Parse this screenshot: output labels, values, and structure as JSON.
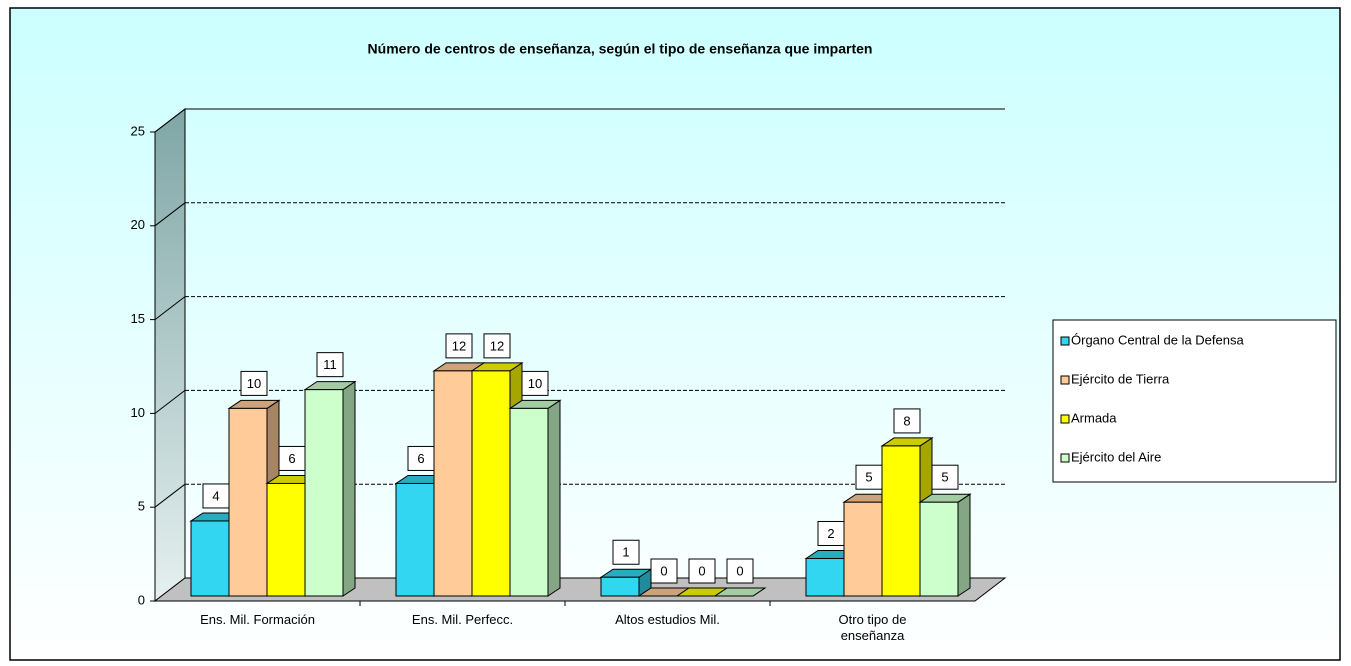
{
  "chart_data": {
    "type": "bar3d",
    "title": "Número de centros de enseñanza, según el tipo de enseñanza que imparten",
    "categories": [
      "Ens. Mil. Formación",
      "Ens. Mil. Perfecc.",
      "Altos estudios Mil.",
      "Otro tipo de enseñanza"
    ],
    "series": [
      {
        "name": "Órgano Central de la Defensa",
        "color": "#33d6f0",
        "values": [
          4,
          6,
          1,
          2
        ]
      },
      {
        "name": "Ejército de Tierra",
        "color": "#ffcc99",
        "values": [
          10,
          12,
          0,
          5
        ]
      },
      {
        "name": "Armada",
        "color": "#ffff00",
        "values": [
          6,
          12,
          0,
          8
        ]
      },
      {
        "name": "Ejército del Aire",
        "color": "#ccffcc",
        "values": [
          11,
          10,
          0,
          5
        ]
      }
    ],
    "ylim": [
      0,
      25
    ],
    "yticks": [
      0,
      5,
      10,
      15,
      20,
      25
    ],
    "grid": true,
    "legend": "right"
  }
}
